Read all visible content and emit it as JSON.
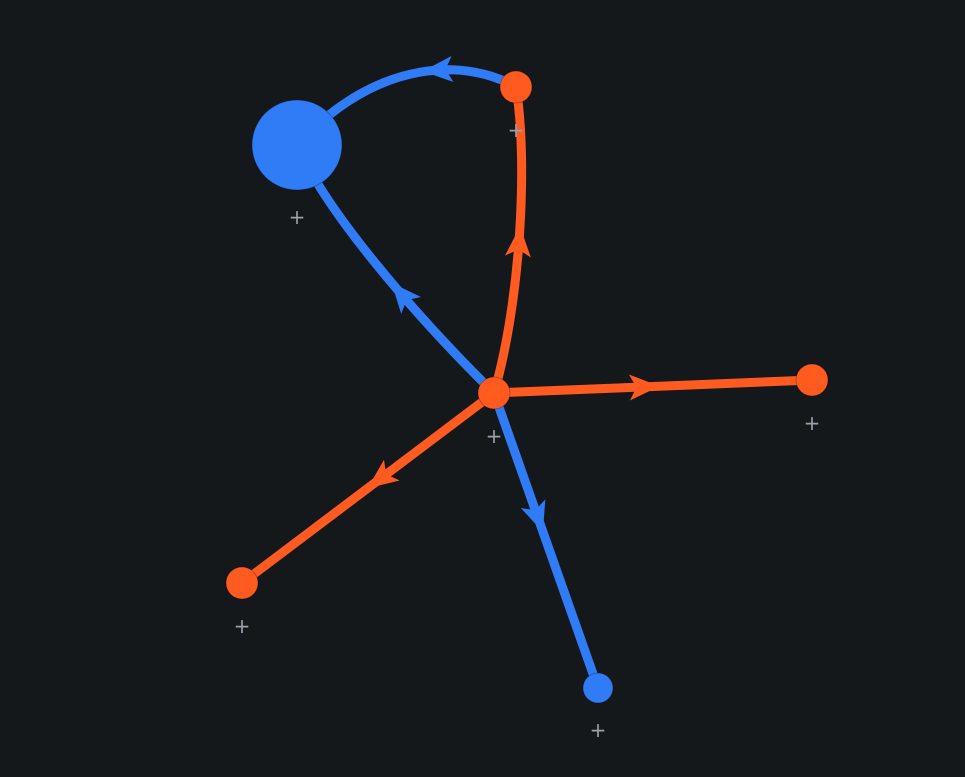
{
  "colors": {
    "background": "#14181b",
    "blue": "#2f7cf6",
    "orange": "#ff5a1f",
    "label": "#9aa1a8"
  },
  "nodes": [
    {
      "id": "hub",
      "label": "+",
      "color": "orange",
      "size": "small"
    },
    {
      "id": "top",
      "label": "+",
      "color": "orange",
      "size": "small"
    },
    {
      "id": "big",
      "label": "+",
      "color": "blue",
      "size": "large"
    },
    {
      "id": "right",
      "label": "+",
      "color": "orange",
      "size": "small"
    },
    {
      "id": "left",
      "label": "+",
      "color": "orange",
      "size": "small"
    },
    {
      "id": "bottom",
      "label": "+",
      "color": "blue",
      "size": "small"
    }
  ],
  "edges": [
    {
      "from": "hub",
      "to": "top",
      "color": "orange"
    },
    {
      "from": "hub",
      "to": "big",
      "color": "blue"
    },
    {
      "from": "top",
      "to": "big",
      "color": "blue"
    },
    {
      "from": "hub",
      "to": "right",
      "color": "orange"
    },
    {
      "from": "hub",
      "to": "left",
      "color": "orange"
    },
    {
      "from": "hub",
      "to": "bottom",
      "color": "blue"
    }
  ]
}
